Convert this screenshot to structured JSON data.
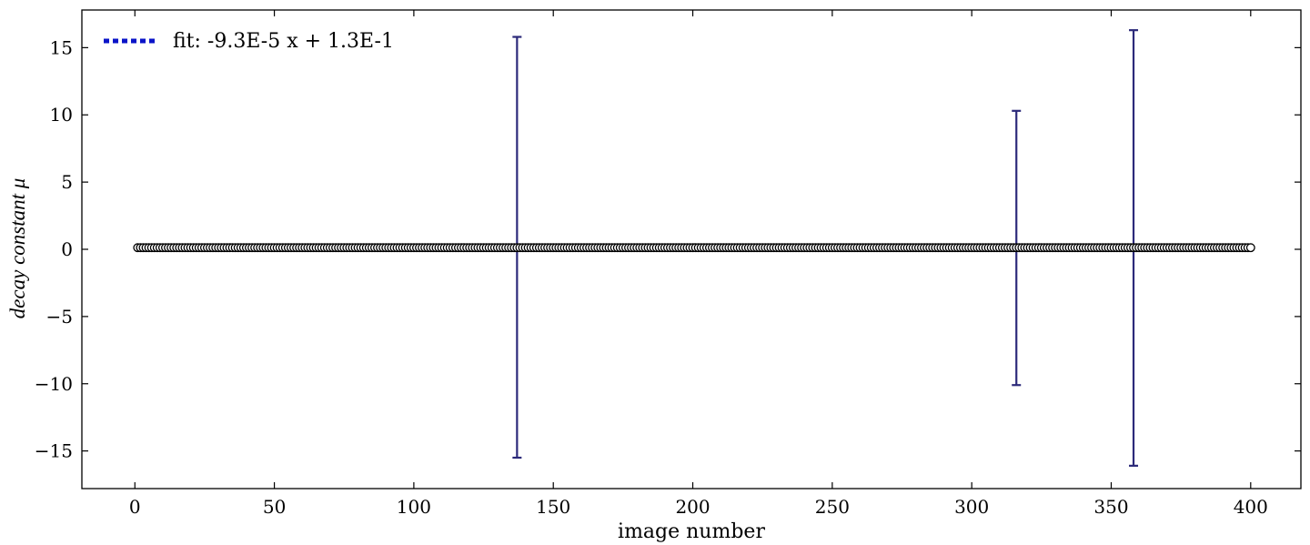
{
  "chart_data": {
    "type": "scatter",
    "title": "",
    "xlabel": "image number",
    "ylabel": "decay constant μ",
    "xlim": [
      -19,
      418
    ],
    "ylim": [
      -17.8,
      17.8
    ],
    "xticks": [
      0,
      50,
      100,
      150,
      200,
      250,
      300,
      350,
      400
    ],
    "xtick_labels": [
      "0",
      "50",
      "100",
      "150",
      "200",
      "250",
      "300",
      "350",
      "400"
    ],
    "yticks": [
      -15,
      -10,
      -5,
      0,
      5,
      10,
      15
    ],
    "ytick_labels": [
      "−15",
      "−10",
      "−5",
      "0",
      "5",
      "10",
      "15"
    ],
    "grid": false,
    "legend": {
      "placement": "top-left",
      "entries": [
        {
          "label": "fit: -9.3E-5 x + 1.3E-1",
          "color": "#0a14c8",
          "style": "dotted"
        }
      ]
    },
    "series": [
      {
        "marker": "circle-open",
        "marker_edge_color": "#000000",
        "marker_face_color": "#ffffff",
        "x_start": 1,
        "x_end": 400,
        "y_typical": 0.12,
        "values_note": "",
        "y_values_by_x": {},
        "error_bars": [
          {
            "x": 137,
            "y": 0.13,
            "lower": -15.5,
            "upper": 15.8
          },
          {
            "x": 316,
            "y": 0.1,
            "lower": -10.1,
            "upper": 10.3
          },
          {
            "x": 358,
            "y": 0.11,
            "lower": -16.1,
            "upper": 16.3
          }
        ],
        "error_bar_color": "#2c2a7a"
      }
    ],
    "fit_line": {
      "slope": -9.3e-05,
      "intercept": 0.13,
      "color": "#0a14c8"
    }
  }
}
